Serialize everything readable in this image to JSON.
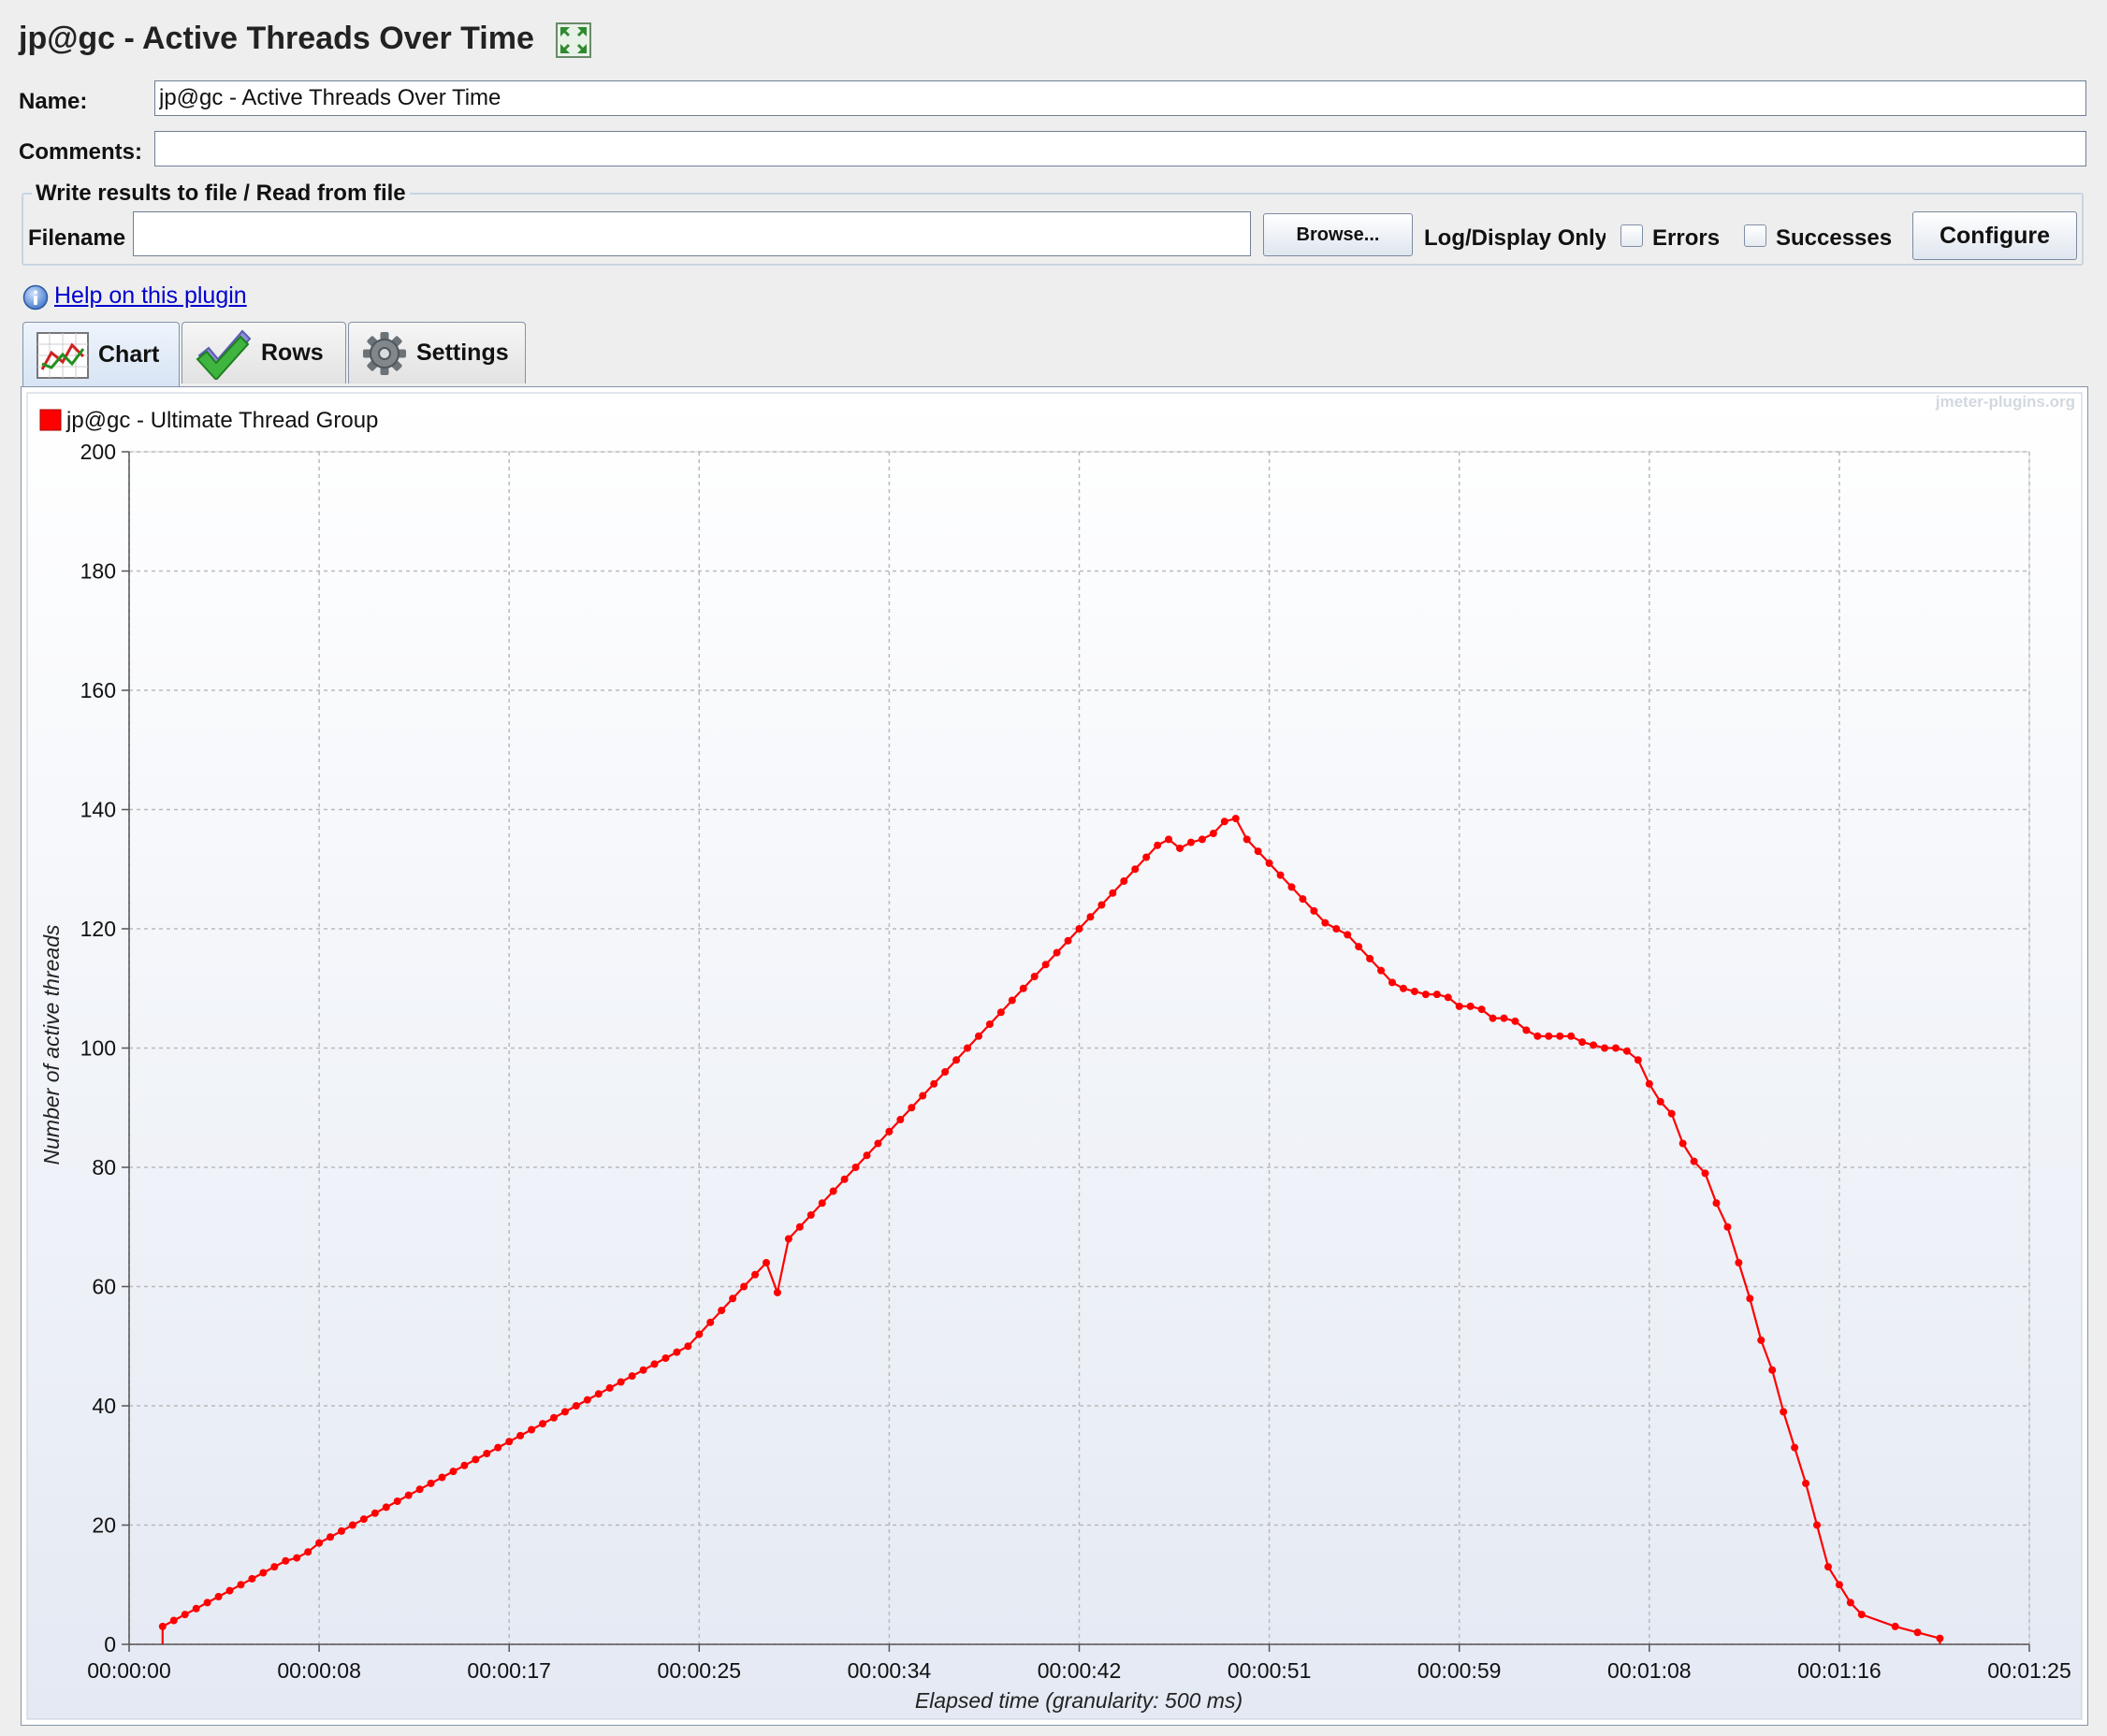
{
  "window": {
    "title": "jp@gc - Active Threads Over Time"
  },
  "form": {
    "name_label": "Name:",
    "name_value": "jp@gc - Active Threads Over Time",
    "comments_label": "Comments:",
    "comments_value": ""
  },
  "file_section": {
    "title": "Write results to file / Read from file",
    "filename_label": "Filename",
    "filename_value": "",
    "browse_label": "Browse...",
    "log_display_label": "Log/Display Only",
    "errors_label": "Errors",
    "errors_checked": false,
    "successes_label": "Successes",
    "successes_checked": false,
    "configure_label": "Configure"
  },
  "help": {
    "label": "Help on this plugin"
  },
  "tabs": [
    {
      "label": "Chart",
      "icon": "chart-icon",
      "active": true
    },
    {
      "label": "Rows",
      "icon": "checkmark-icon",
      "active": false
    },
    {
      "label": "Settings",
      "icon": "gear-icon",
      "active": false
    }
  ],
  "watermark": "jmeter-plugins.org",
  "colors": {
    "series": "#ff0000",
    "link": "#0000cc"
  },
  "chart_data": {
    "type": "line",
    "xlabel": "Elapsed time (granularity: 500 ms)",
    "ylabel": "Number of active threads",
    "xlim": [
      0,
      85
    ],
    "ylim": [
      0,
      200
    ],
    "xticks": [
      {
        "v": 0,
        "label": "00:00:00"
      },
      {
        "v": 8.5,
        "label": "00:00:08"
      },
      {
        "v": 17,
        "label": "00:00:17"
      },
      {
        "v": 25.5,
        "label": "00:00:25"
      },
      {
        "v": 34,
        "label": "00:00:34"
      },
      {
        "v": 42.5,
        "label": "00:00:42"
      },
      {
        "v": 51,
        "label": "00:00:51"
      },
      {
        "v": 59.5,
        "label": "00:00:59"
      },
      {
        "v": 68,
        "label": "00:01:08"
      },
      {
        "v": 76.5,
        "label": "00:01:16"
      },
      {
        "v": 85,
        "label": "00:01:25"
      }
    ],
    "yticks": [
      0,
      20,
      40,
      60,
      80,
      100,
      120,
      140,
      160,
      180,
      200
    ],
    "grid": true,
    "legend_position": "top-left",
    "series": [
      {
        "name": "jp@gc - Ultimate Thread Group",
        "color": "#ff0000",
        "points": [
          [
            1.5,
            0
          ],
          [
            1.5,
            3
          ],
          [
            2,
            4
          ],
          [
            2.5,
            5
          ],
          [
            3,
            6
          ],
          [
            3.5,
            7
          ],
          [
            4,
            8
          ],
          [
            4.5,
            9
          ],
          [
            5,
            10
          ],
          [
            5.5,
            11
          ],
          [
            6,
            12
          ],
          [
            6.5,
            13
          ],
          [
            7,
            14
          ],
          [
            7.5,
            14.5
          ],
          [
            8,
            15.5
          ],
          [
            8.5,
            17
          ],
          [
            9,
            18
          ],
          [
            9.5,
            19
          ],
          [
            10,
            20
          ],
          [
            10.5,
            21
          ],
          [
            11,
            22
          ],
          [
            11.5,
            23
          ],
          [
            12,
            24
          ],
          [
            12.5,
            25
          ],
          [
            13,
            26
          ],
          [
            13.5,
            27
          ],
          [
            14,
            28
          ],
          [
            14.5,
            29
          ],
          [
            15,
            30
          ],
          [
            15.5,
            31
          ],
          [
            16,
            32
          ],
          [
            16.5,
            33
          ],
          [
            17,
            34
          ],
          [
            17.5,
            35
          ],
          [
            18,
            36
          ],
          [
            18.5,
            37
          ],
          [
            19,
            38
          ],
          [
            19.5,
            39
          ],
          [
            20,
            40
          ],
          [
            20.5,
            41
          ],
          [
            21,
            42
          ],
          [
            21.5,
            43
          ],
          [
            22,
            44
          ],
          [
            22.5,
            45
          ],
          [
            23,
            46
          ],
          [
            23.5,
            47
          ],
          [
            24,
            48
          ],
          [
            24.5,
            49
          ],
          [
            25,
            50
          ],
          [
            25.5,
            52
          ],
          [
            26,
            54
          ],
          [
            26.5,
            56
          ],
          [
            27,
            58
          ],
          [
            27.5,
            60
          ],
          [
            28,
            62
          ],
          [
            28.5,
            64
          ],
          [
            29,
            59
          ],
          [
            29.5,
            68
          ],
          [
            30,
            70
          ],
          [
            30.5,
            72
          ],
          [
            31,
            74
          ],
          [
            31.5,
            76
          ],
          [
            32,
            78
          ],
          [
            32.5,
            80
          ],
          [
            33,
            82
          ],
          [
            33.5,
            84
          ],
          [
            34,
            86
          ],
          [
            34.5,
            88
          ],
          [
            35,
            90
          ],
          [
            35.5,
            92
          ],
          [
            36,
            94
          ],
          [
            36.5,
            96
          ],
          [
            37,
            98
          ],
          [
            37.5,
            100
          ],
          [
            38,
            102
          ],
          [
            38.5,
            104
          ],
          [
            39,
            106
          ],
          [
            39.5,
            108
          ],
          [
            40,
            110
          ],
          [
            40.5,
            112
          ],
          [
            41,
            114
          ],
          [
            41.5,
            116
          ],
          [
            42,
            118
          ],
          [
            42.5,
            120
          ],
          [
            43,
            122
          ],
          [
            43.5,
            124
          ],
          [
            44,
            126
          ],
          [
            44.5,
            128
          ],
          [
            45,
            130
          ],
          [
            45.5,
            132
          ],
          [
            46,
            134
          ],
          [
            46.5,
            135
          ],
          [
            47,
            133.5
          ],
          [
            47.5,
            134.5
          ],
          [
            48,
            135
          ],
          [
            48.5,
            136
          ],
          [
            49,
            138
          ],
          [
            49.5,
            138.5
          ],
          [
            50,
            135
          ],
          [
            50.5,
            133
          ],
          [
            51,
            131
          ],
          [
            51.5,
            129
          ],
          [
            52,
            127
          ],
          [
            52.5,
            125
          ],
          [
            53,
            123
          ],
          [
            53.5,
            121
          ],
          [
            54,
            120
          ],
          [
            54.5,
            119
          ],
          [
            55,
            117
          ],
          [
            55.5,
            115
          ],
          [
            56,
            113
          ],
          [
            56.5,
            111
          ],
          [
            57,
            110
          ],
          [
            57.5,
            109.5
          ],
          [
            58,
            109
          ],
          [
            58.5,
            109
          ],
          [
            59,
            108.5
          ],
          [
            59.5,
            107
          ],
          [
            60,
            107
          ],
          [
            60.5,
            106.5
          ],
          [
            61,
            105
          ],
          [
            61.5,
            105
          ],
          [
            62,
            104.5
          ],
          [
            62.5,
            103
          ],
          [
            63,
            102
          ],
          [
            63.5,
            102
          ],
          [
            64,
            102
          ],
          [
            64.5,
            102
          ],
          [
            65,
            101
          ],
          [
            65.5,
            100.5
          ],
          [
            66,
            100
          ],
          [
            66.5,
            100
          ],
          [
            67,
            99.5
          ],
          [
            67.5,
            98
          ],
          [
            68,
            94
          ],
          [
            68.5,
            91
          ],
          [
            69,
            89
          ],
          [
            69.5,
            84
          ],
          [
            70,
            81
          ],
          [
            70.5,
            79
          ],
          [
            71,
            74
          ],
          [
            71.5,
            70
          ],
          [
            72,
            64
          ],
          [
            72.5,
            58
          ],
          [
            73,
            51
          ],
          [
            73.5,
            46
          ],
          [
            74,
            39
          ],
          [
            74.5,
            33
          ],
          [
            75,
            27
          ],
          [
            75.5,
            20
          ],
          [
            76,
            13
          ],
          [
            76.5,
            10
          ],
          [
            77,
            7
          ],
          [
            77.5,
            5
          ],
          [
            79,
            3
          ],
          [
            80,
            2
          ],
          [
            81,
            1
          ],
          [
            81,
            0
          ]
        ]
      }
    ]
  }
}
